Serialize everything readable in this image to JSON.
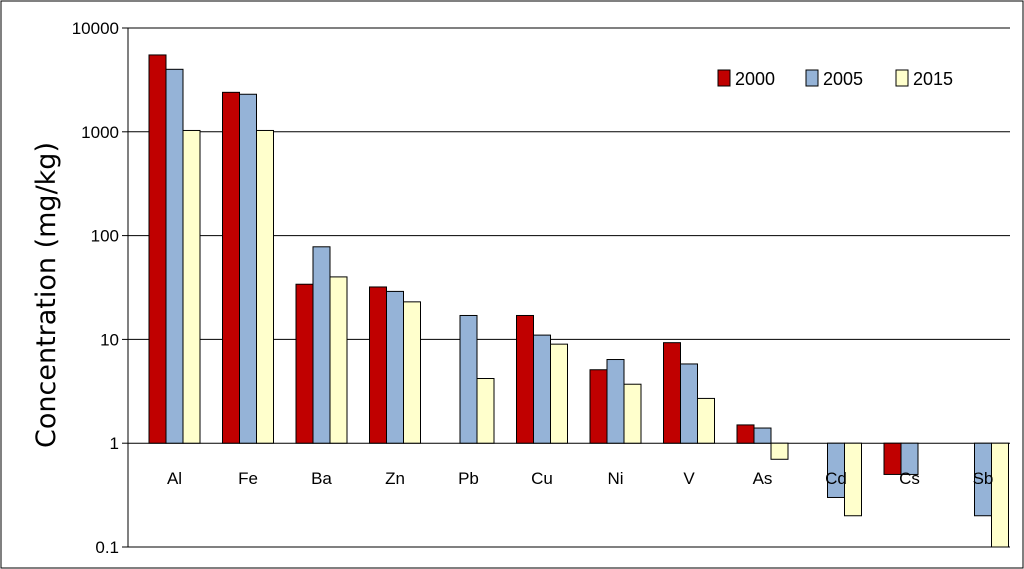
{
  "chart_data": {
    "type": "bar",
    "ylabel": "Concentration (mg/kg)",
    "xlabel": "",
    "y_scale": "log",
    "ylim": [
      0.1,
      10000
    ],
    "y_ticks": [
      {
        "value": 0.1,
        "label": "0.1"
      },
      {
        "value": 1,
        "label": "1"
      },
      {
        "value": 10,
        "label": "10"
      },
      {
        "value": 100,
        "label": "100"
      },
      {
        "value": 1000,
        "label": "1000"
      },
      {
        "value": 10000,
        "label": "10000"
      }
    ],
    "grid": true,
    "bar_baseline": 1,
    "legend_position": "top-right",
    "categories": [
      "Al",
      "Fe",
      "Ba",
      "Zn",
      "Pb",
      "Cu",
      "Ni",
      "V",
      "As",
      "Cd",
      "Cs",
      "Sb"
    ],
    "series": [
      {
        "name": "2000",
        "color": "#C00000",
        "values": [
          5500,
          2400,
          34,
          32,
          null,
          17,
          5.1,
          9.3,
          1.5,
          null,
          0.5,
          null
        ]
      },
      {
        "name": "2005",
        "color": "#95B3D7",
        "values": [
          4000,
          2300,
          78,
          29,
          17,
          11,
          6.4,
          5.8,
          1.4,
          0.3,
          0.5,
          0.2
        ]
      },
      {
        "name": "2015",
        "color": "#FFFFCC",
        "values": [
          1030,
          1030,
          40,
          23,
          4.2,
          9,
          3.7,
          2.7,
          0.7,
          0.2,
          null,
          0.1
        ]
      }
    ]
  }
}
